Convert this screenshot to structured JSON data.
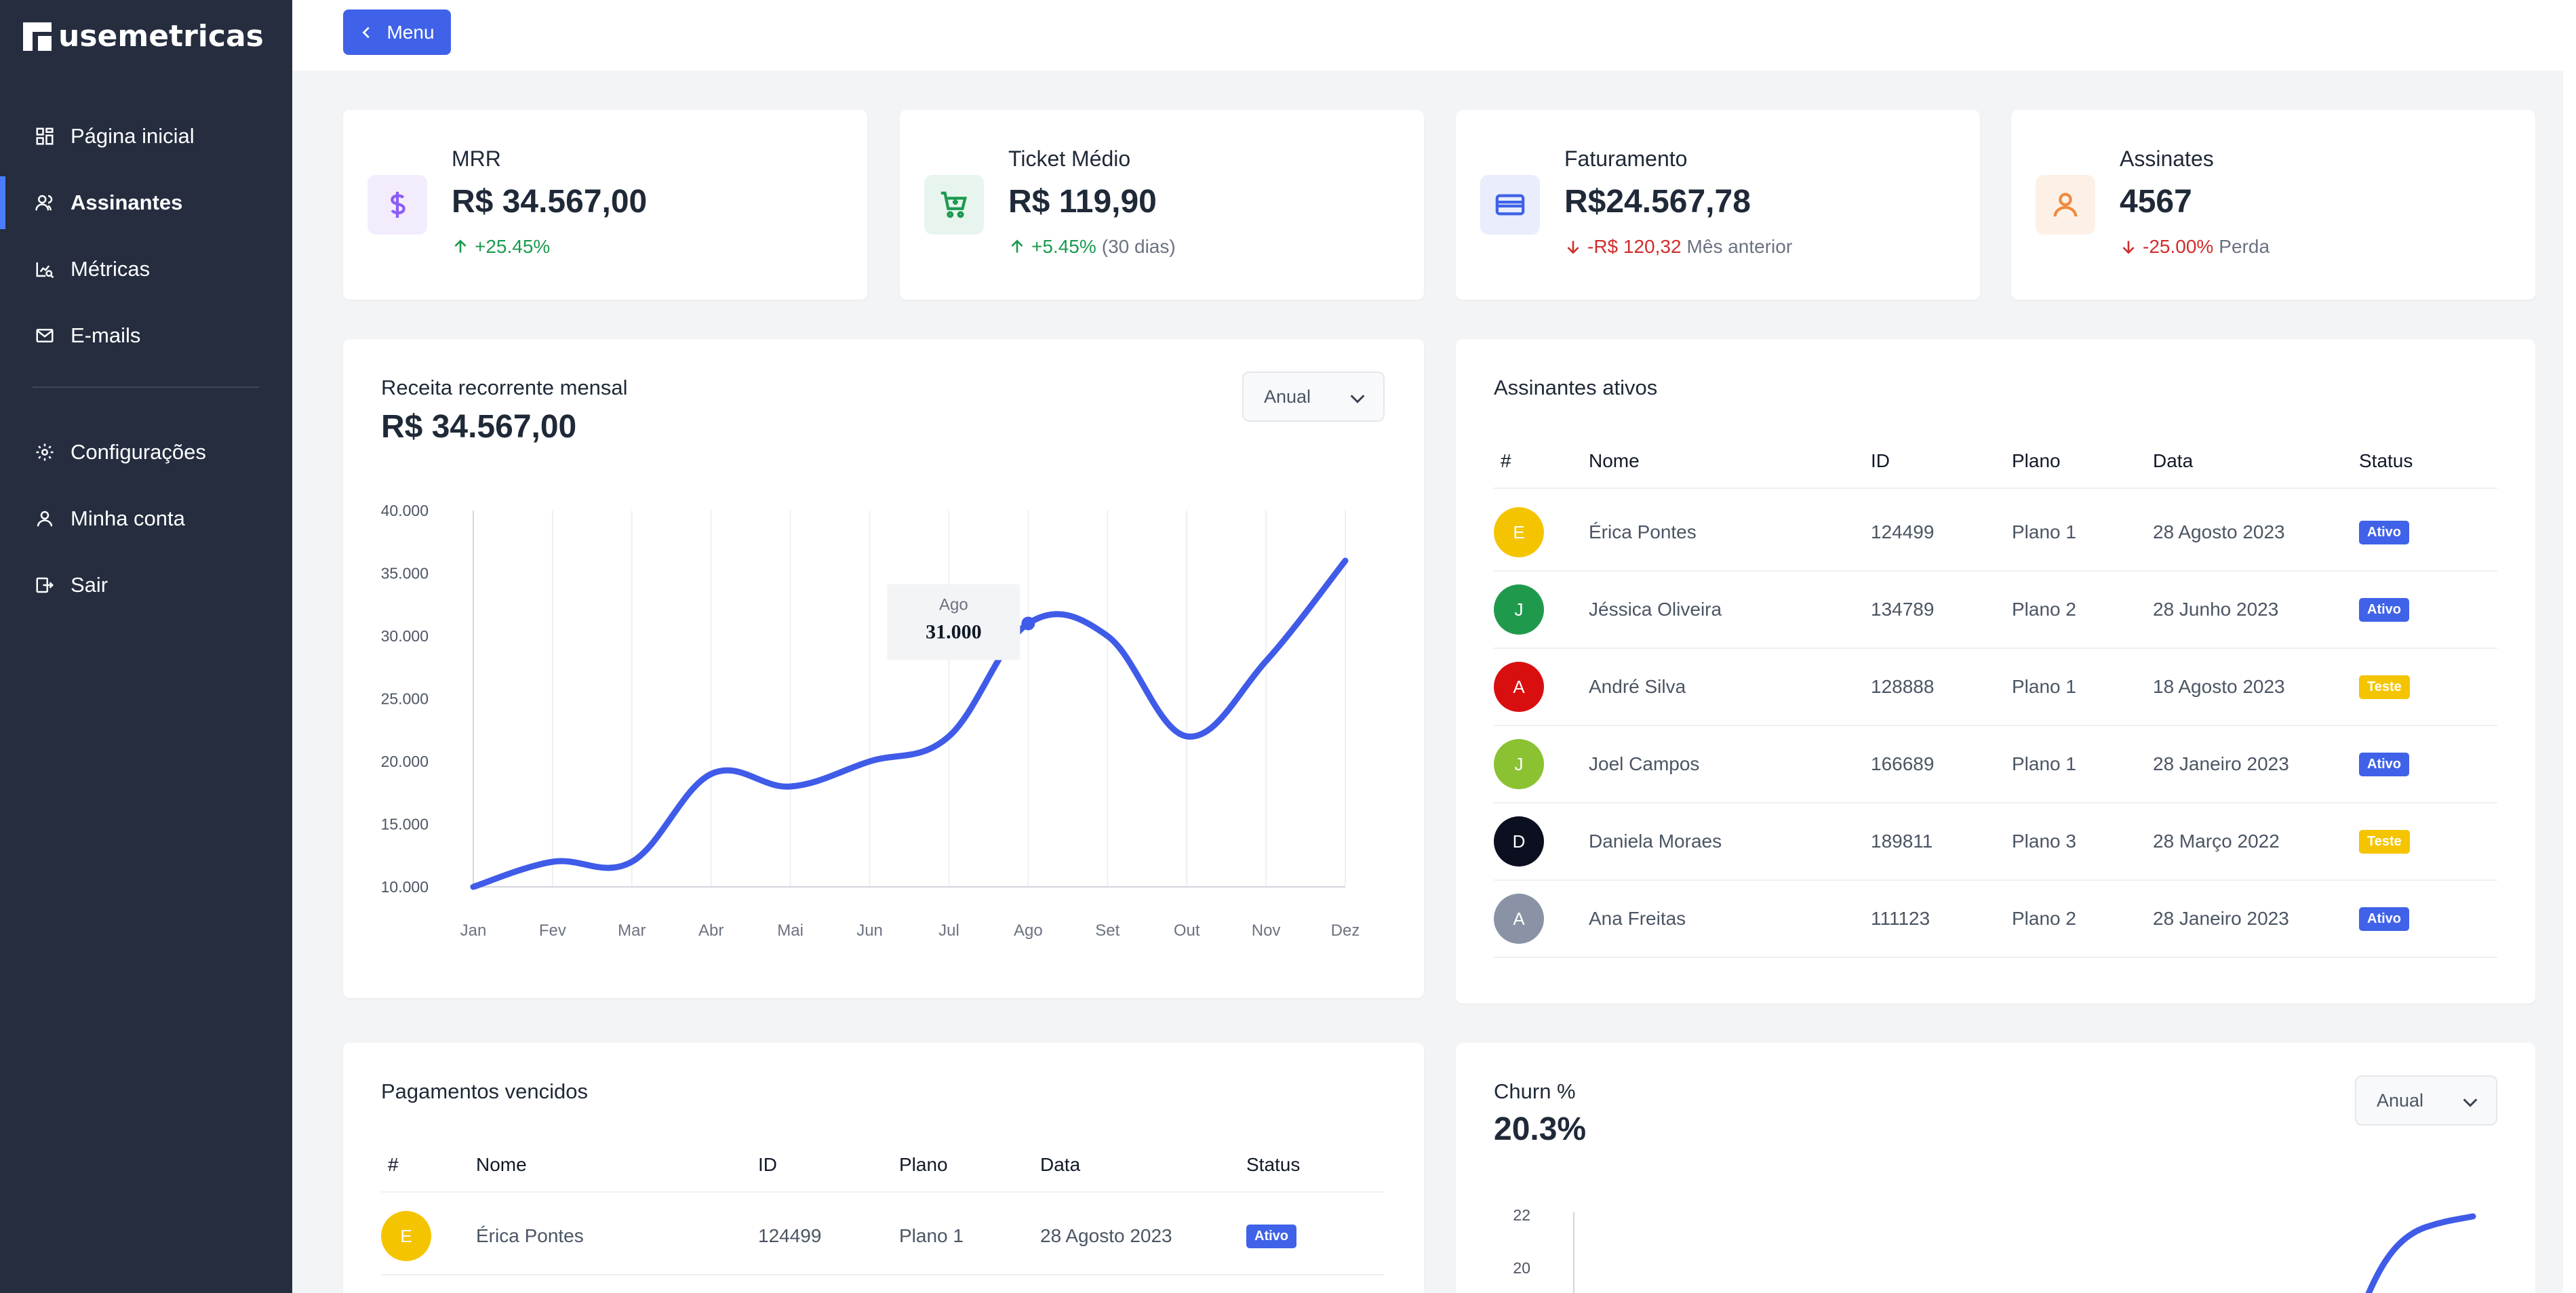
{
  "brand": {
    "name": "usemetricas"
  },
  "sidebar": {
    "items": [
      {
        "label": "Página inicial",
        "icon": "grid-icon"
      },
      {
        "label": "Assinantes",
        "icon": "users-icon",
        "active": true
      },
      {
        "label": "Métricas",
        "icon": "chart-search-icon"
      },
      {
        "label": "E-mails",
        "icon": "mail-icon"
      }
    ],
    "items2": [
      {
        "label": "Configurações",
        "icon": "gear-icon"
      },
      {
        "label": "Minha conta",
        "icon": "user-icon"
      },
      {
        "label": "Sair",
        "icon": "logout-icon"
      }
    ]
  },
  "topbar": {
    "menu_label": "Menu"
  },
  "kpis": [
    {
      "title": "MRR",
      "value": "R$ 34.567,00",
      "delta": "+25.45%",
      "suffix": "",
      "direction": "up",
      "icon": "dollar-icon",
      "icon_color": "#8b5cf6",
      "icon_bg": "#f3ecfd"
    },
    {
      "title": "Ticket Médio",
      "value": "R$ 119,90",
      "delta": "+5.45%",
      "suffix": "(30 dias)",
      "direction": "up",
      "icon": "cart-icon",
      "icon_color": "#1c9a50",
      "icon_bg": "#e8f5ee"
    },
    {
      "title": "Faturamento",
      "value": "R$24.567,78",
      "delta": "-R$ 120,32",
      "suffix": "Mês anterior",
      "direction": "down",
      "icon": "credit-card-icon",
      "icon_color": "#3f62e8",
      "icon_bg": "#e9edfc"
    },
    {
      "title": "Assinates",
      "value": "4567",
      "delta": "-25.00%",
      "suffix": "Perda",
      "direction": "down",
      "icon": "user-icon",
      "icon_color": "#f08a3c",
      "icon_bg": "#fdf1e7"
    }
  ],
  "revenue": {
    "title": "Receita recorrente mensal",
    "value": "R$ 34.567,00",
    "select": "Anual",
    "tooltip": {
      "label": "Ago",
      "value": "31.000"
    }
  },
  "chart_data": [
    {
      "type": "line",
      "title": "Receita recorrente mensal",
      "categories": [
        "Jan",
        "Fev",
        "Mar",
        "Abr",
        "Mai",
        "Jun",
        "Jul",
        "Ago",
        "Set",
        "Out",
        "Nov",
        "Dez"
      ],
      "values": [
        10000,
        12000,
        12000,
        19000,
        18000,
        20000,
        22000,
        31000,
        30000,
        22000,
        28000,
        36000
      ],
      "ylim": [
        10000,
        40000
      ],
      "yticks": [
        "10.000",
        "15.000",
        "20.000",
        "25.000",
        "30.000",
        "35.000",
        "40.000"
      ],
      "color": "#3f5be8",
      "grid": "vertical"
    },
    {
      "type": "line",
      "title": "Churn %",
      "categories": [],
      "yticks": [
        "20",
        "22"
      ],
      "ylim": [
        20,
        22
      ],
      "color": "#3f5be8"
    }
  ],
  "active_subscribers": {
    "title": "Assinantes ativos",
    "headers": [
      "#",
      "Nome",
      "ID",
      "Plano",
      "Data",
      "Status"
    ],
    "rows": [
      {
        "initial": "E",
        "color": "#f5c400",
        "name": "Érica Pontes",
        "id": "124499",
        "plan": "Plano 1",
        "date": "28 Agosto 2023",
        "status": "Ativo"
      },
      {
        "initial": "J",
        "color": "#1f9a4d",
        "name": "Jéssica Oliveira",
        "id": "134789",
        "plan": "Plano 2",
        "date": "28 Junho 2023",
        "status": "Ativo"
      },
      {
        "initial": "A",
        "color": "#d90f0f",
        "name": "André Silva",
        "id": "128888",
        "plan": "Plano 1",
        "date": "18 Agosto 2023",
        "status": "Teste"
      },
      {
        "initial": "J",
        "color": "#8ac232",
        "name": "Joel Campos",
        "id": "166689",
        "plan": "Plano 1",
        "date": "28 Janeiro 2023",
        "status": "Ativo"
      },
      {
        "initial": "D",
        "color": "#0c0f20",
        "name": "Daniela Moraes",
        "id": "189811",
        "plan": "Plano 3",
        "date": "28 Março 2022",
        "status": "Teste"
      },
      {
        "initial": "A",
        "color": "#8a93a6",
        "name": "Ana Freitas",
        "id": "111123",
        "plan": "Plano 2",
        "date": "28 Janeiro 2023",
        "status": "Ativo"
      }
    ]
  },
  "overdue": {
    "title": "Pagamentos vencidos",
    "headers": [
      "#",
      "Nome",
      "ID",
      "Plano",
      "Data",
      "Status"
    ],
    "rows": [
      {
        "initial": "E",
        "color": "#f5c400",
        "name": "Érica Pontes",
        "id": "124499",
        "plan": "Plano 1",
        "date": "28 Agosto 2023",
        "status": "Ativo"
      }
    ]
  },
  "churn": {
    "title": "Churn %",
    "value": "20.3%",
    "select": "Anual"
  }
}
